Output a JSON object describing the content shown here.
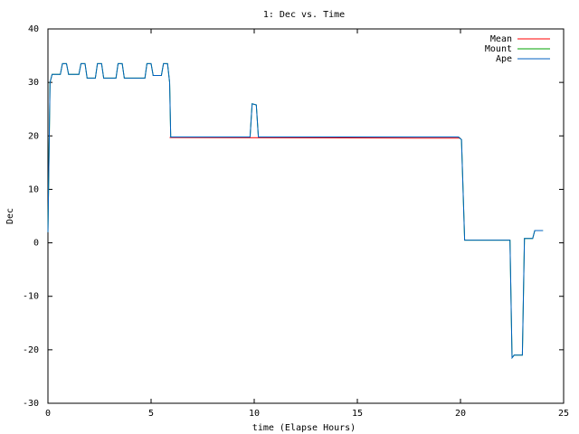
{
  "chart_data": {
    "type": "line",
    "title": "1: Dec vs. Time",
    "xlabel": "time (Elapse Hours)",
    "ylabel": "Dec",
    "xlim": [
      0,
      25
    ],
    "ylim": [
      -30,
      40
    ],
    "xticks": [
      0,
      5,
      10,
      15,
      20,
      25
    ],
    "yticks": [
      -30,
      -20,
      -10,
      0,
      10,
      20,
      30,
      40
    ],
    "grid": false,
    "legend_position": "top-right",
    "series": [
      {
        "name": "Mean",
        "color": "#ff0000",
        "points": [
          [
            5.9,
            19.7
          ],
          [
            6.3,
            19.7
          ],
          [
            17.8,
            19.6
          ],
          [
            20.0,
            19.6
          ]
        ]
      },
      {
        "name": "Mount",
        "color": "#00a000",
        "points": [
          [
            0,
            2
          ],
          [
            0.1,
            30
          ],
          [
            0.2,
            31.5
          ],
          [
            0.6,
            31.5
          ],
          [
            0.7,
            33.5
          ],
          [
            0.9,
            33.5
          ],
          [
            1.0,
            31.5
          ],
          [
            1.5,
            31.5
          ],
          [
            1.6,
            33.5
          ],
          [
            1.8,
            33.5
          ],
          [
            1.9,
            30.8
          ],
          [
            2.3,
            30.8
          ],
          [
            2.4,
            33.5
          ],
          [
            2.6,
            33.5
          ],
          [
            2.7,
            30.8
          ],
          [
            3.3,
            30.8
          ],
          [
            3.4,
            33.5
          ],
          [
            3.6,
            33.5
          ],
          [
            3.7,
            30.8
          ],
          [
            4.7,
            30.8
          ],
          [
            4.8,
            33.5
          ],
          [
            5.0,
            33.5
          ],
          [
            5.1,
            31.3
          ],
          [
            5.5,
            31.3
          ],
          [
            5.6,
            33.5
          ],
          [
            5.8,
            33.5
          ],
          [
            5.9,
            30
          ],
          [
            5.95,
            19.8
          ],
          [
            9.8,
            19.8
          ],
          [
            9.9,
            26
          ],
          [
            10.1,
            25.8
          ],
          [
            10.2,
            19.8
          ],
          [
            19.9,
            19.8
          ],
          [
            20.05,
            19.3
          ],
          [
            20.2,
            0.5
          ],
          [
            22.4,
            0.5
          ],
          [
            22.5,
            -21.5
          ],
          [
            22.6,
            -21
          ],
          [
            23.0,
            -21
          ],
          [
            23.1,
            0.8
          ],
          [
            23.5,
            0.8
          ],
          [
            23.6,
            2.3
          ],
          [
            24.0,
            2.3
          ]
        ]
      },
      {
        "name": "Ape",
        "color": "#0060c0",
        "points": [
          [
            0,
            2
          ],
          [
            0.1,
            30
          ],
          [
            0.2,
            31.5
          ],
          [
            0.6,
            31.5
          ],
          [
            0.7,
            33.5
          ],
          [
            0.9,
            33.5
          ],
          [
            1.0,
            31.5
          ],
          [
            1.5,
            31.5
          ],
          [
            1.6,
            33.5
          ],
          [
            1.8,
            33.5
          ],
          [
            1.9,
            30.8
          ],
          [
            2.3,
            30.8
          ],
          [
            2.4,
            33.5
          ],
          [
            2.6,
            33.5
          ],
          [
            2.7,
            30.8
          ],
          [
            3.3,
            30.8
          ],
          [
            3.4,
            33.5
          ],
          [
            3.6,
            33.5
          ],
          [
            3.7,
            30.8
          ],
          [
            4.7,
            30.8
          ],
          [
            4.8,
            33.5
          ],
          [
            5.0,
            33.5
          ],
          [
            5.1,
            31.3
          ],
          [
            5.5,
            31.3
          ],
          [
            5.6,
            33.5
          ],
          [
            5.8,
            33.5
          ],
          [
            5.9,
            30
          ],
          [
            5.95,
            19.8
          ],
          [
            9.8,
            19.8
          ],
          [
            9.9,
            26
          ],
          [
            10.1,
            25.8
          ],
          [
            10.2,
            19.8
          ],
          [
            19.9,
            19.8
          ],
          [
            20.05,
            19.3
          ],
          [
            20.2,
            0.5
          ],
          [
            22.4,
            0.5
          ],
          [
            22.5,
            -21.5
          ],
          [
            22.6,
            -21
          ],
          [
            23.0,
            -21
          ],
          [
            23.1,
            0.8
          ],
          [
            23.5,
            0.8
          ],
          [
            23.6,
            2.3
          ],
          [
            24.0,
            2.3
          ]
        ]
      }
    ]
  }
}
